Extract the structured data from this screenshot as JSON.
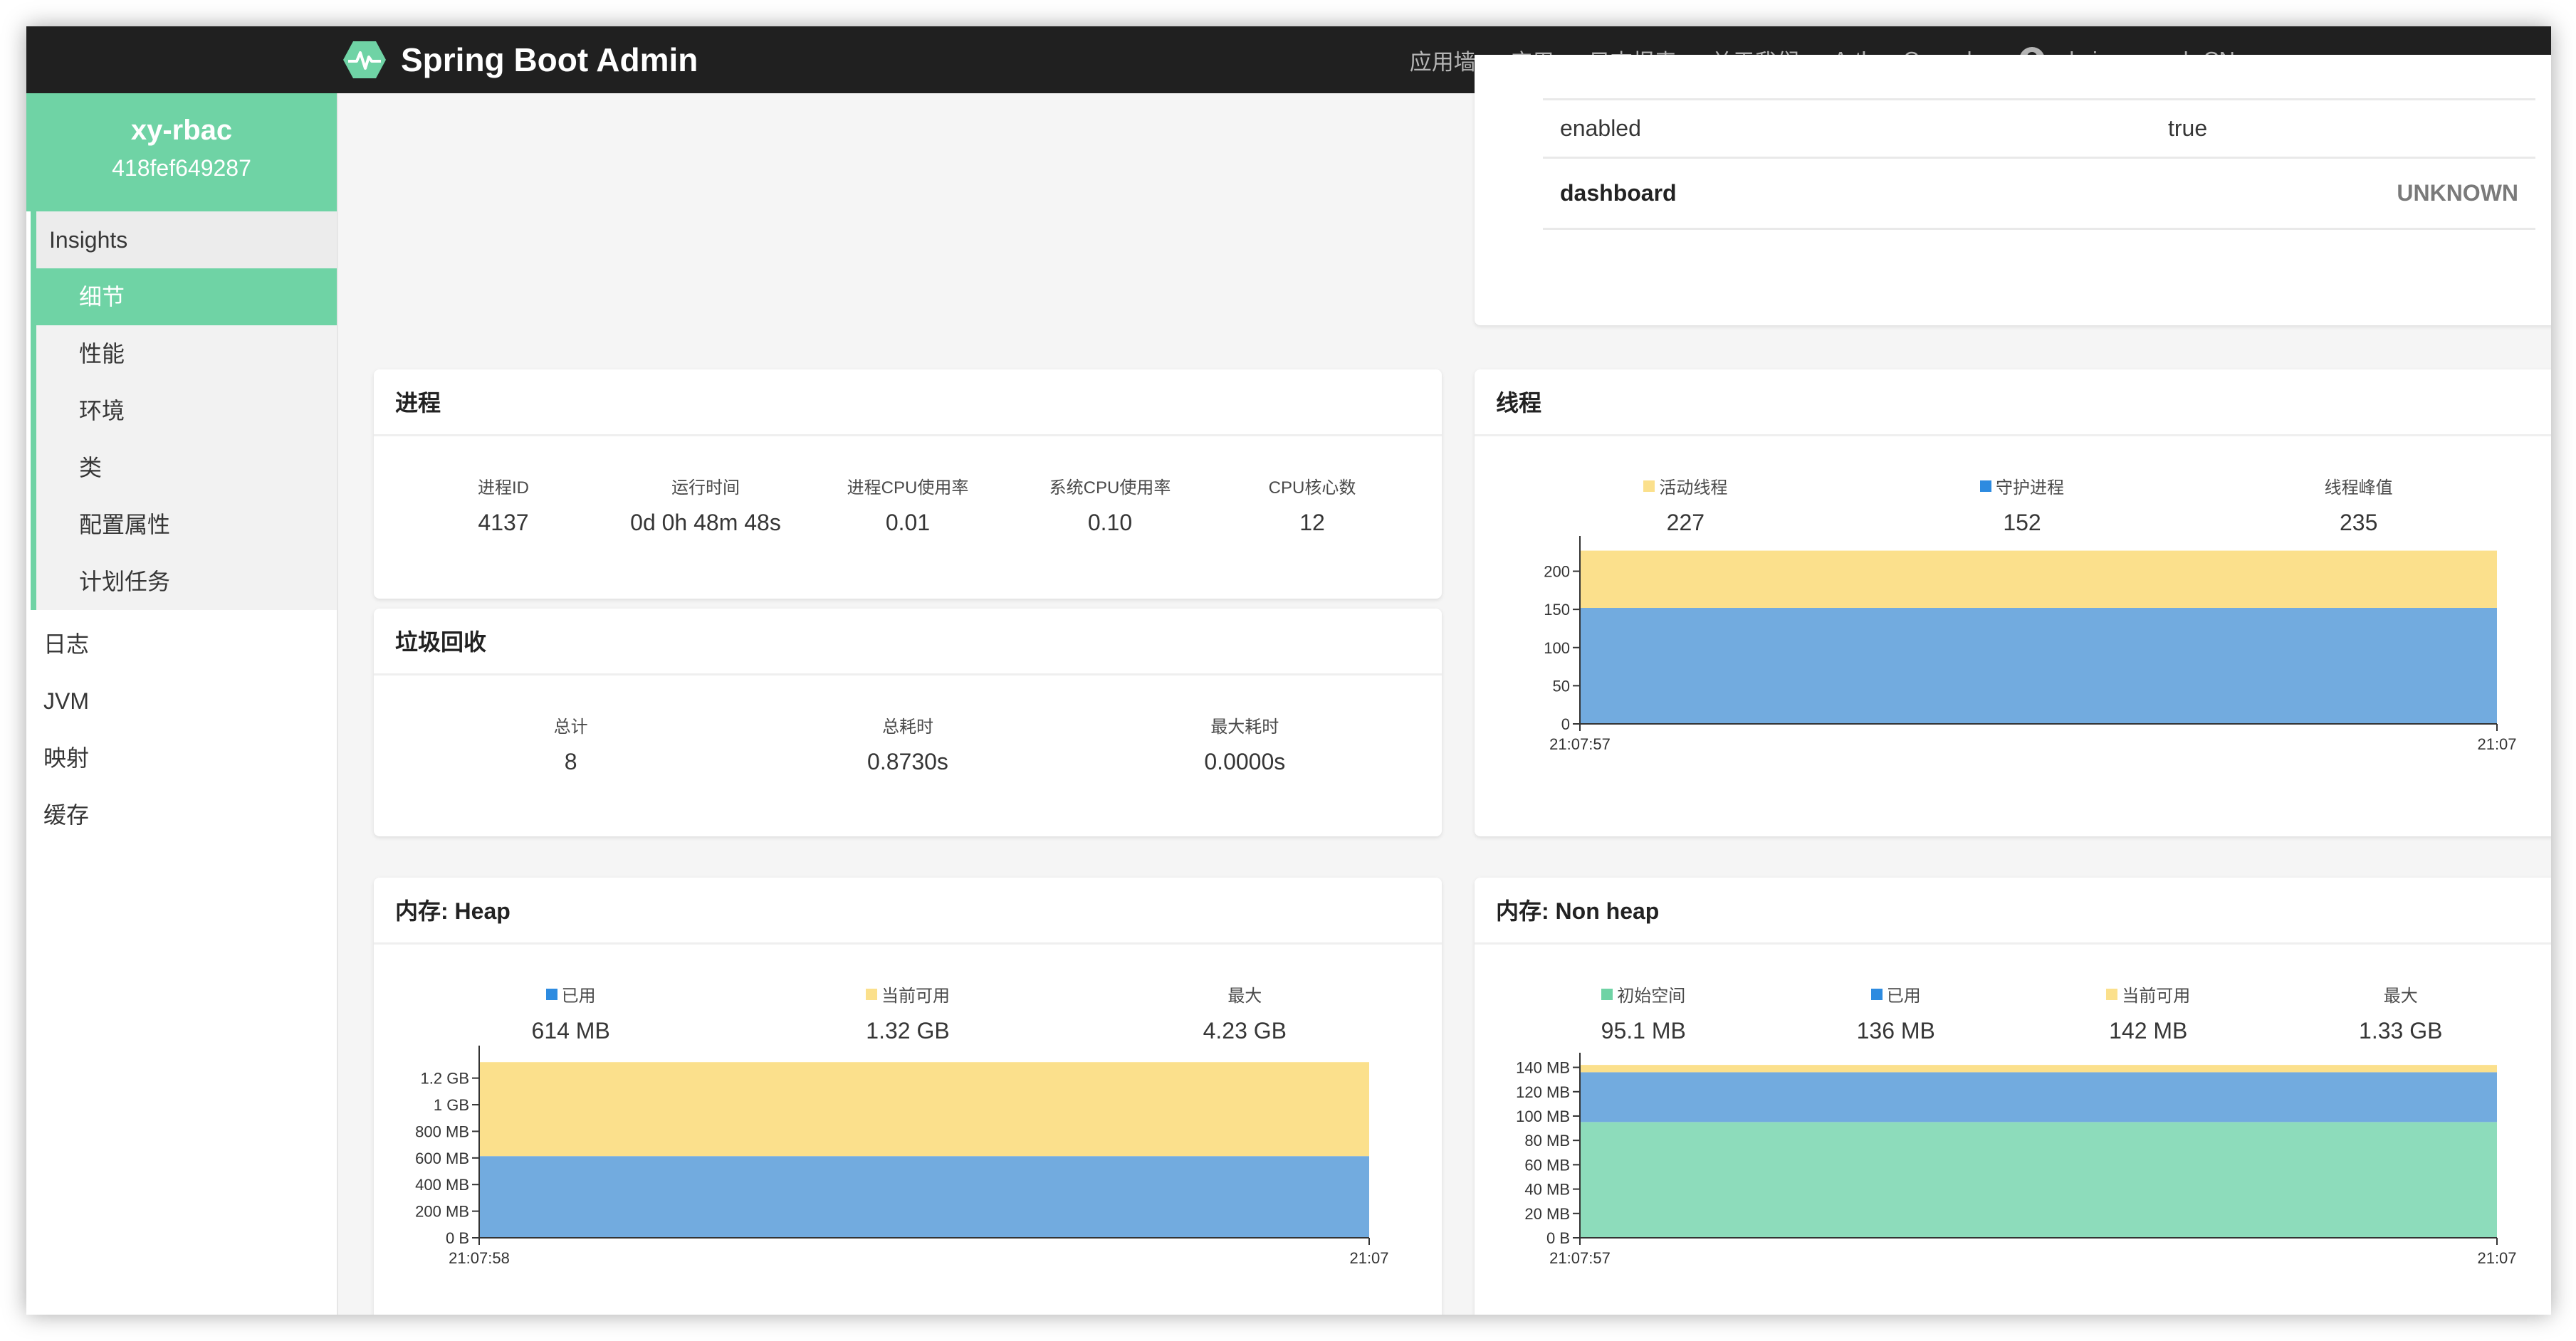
{
  "navbar": {
    "brand": "Spring Boot Admin",
    "items": [
      "应用墙",
      "应用",
      "日志报表",
      "关于我们",
      "Arthas Console"
    ],
    "user": "admin",
    "language": "zh-CN"
  },
  "sidebar": {
    "app_name": "xy-rbac",
    "app_id": "418fef649287",
    "insights_label": "Insights",
    "insights_items": [
      "细节",
      "性能",
      "环境",
      "类",
      "配置属性",
      "计划任务"
    ],
    "active_item": "细节",
    "items": [
      "日志",
      "JVM",
      "映射",
      "缓存"
    ]
  },
  "health": {
    "rows": [
      {
        "key": "enabled",
        "value": "true"
      },
      {
        "key": "dashboard",
        "value": "UNKNOWN"
      }
    ]
  },
  "process": {
    "title": "进程",
    "stats": [
      {
        "label": "进程ID",
        "value": "4137"
      },
      {
        "label": "运行时间",
        "value": "0d 0h 48m 48s"
      },
      {
        "label": "进程CPU使用率",
        "value": "0.01"
      },
      {
        "label": "系统CPU使用率",
        "value": "0.10"
      },
      {
        "label": "CPU核心数",
        "value": "12"
      }
    ]
  },
  "gc": {
    "title": "垃圾回收",
    "stats": [
      {
        "label": "总计",
        "value": "8"
      },
      {
        "label": "总耗时",
        "value": "0.8730s"
      },
      {
        "label": "最大耗时",
        "value": "0.0000s"
      }
    ]
  },
  "threads": {
    "title": "线程",
    "stats": [
      {
        "label": "活动线程",
        "value": "227",
        "color": "#fbe08c"
      },
      {
        "label": "守护进程",
        "value": "152",
        "color": "#2d8be0"
      },
      {
        "label": "线程峰值",
        "value": "235"
      }
    ]
  },
  "heap": {
    "title": "内存: Heap",
    "stats": [
      {
        "label": "已用",
        "value": "614 MB",
        "color": "#2d8be0"
      },
      {
        "label": "当前可用",
        "value": "1.32 GB",
        "color": "#fbe08c"
      },
      {
        "label": "最大",
        "value": "4.23 GB"
      }
    ]
  },
  "nonheap": {
    "title": "内存: Non heap",
    "stats": [
      {
        "label": "初始空间",
        "value": "95.1 MB",
        "color": "#6fd3a5"
      },
      {
        "label": "已用",
        "value": "136 MB",
        "color": "#2d8be0"
      },
      {
        "label": "当前可用",
        "value": "142 MB",
        "color": "#fbe08c"
      },
      {
        "label": "最大",
        "value": "1.33 GB"
      }
    ]
  },
  "colors": {
    "accent": "#6fd3a5",
    "blue_area": "#72abdf",
    "yellow_area": "#fbe08c",
    "green_area": "#8ddcbb",
    "navbar_bg": "#202020"
  },
  "chart_data": [
    {
      "type": "area",
      "name": "threads",
      "x": [
        "21:07:57",
        "21:07"
      ],
      "series": [
        {
          "name": "守护进程",
          "values": [
            152,
            152
          ]
        },
        {
          "name": "活动线程",
          "values": [
            227,
            227
          ]
        }
      ],
      "ylim": [
        0,
        235
      ],
      "yticks": [
        0,
        50,
        100,
        150,
        200
      ],
      "ytick_labels": [
        "0",
        "50",
        "100",
        "150",
        "200"
      ]
    },
    {
      "type": "area",
      "name": "heap",
      "x": [
        "21:07:58",
        "21:07"
      ],
      "series": [
        {
          "name": "已用",
          "values": [
            614,
            614
          ]
        },
        {
          "name": "当前可用",
          "values": [
            1320,
            1320
          ]
        }
      ],
      "ylim": [
        0,
        1380
      ],
      "yticks": [
        0,
        200,
        400,
        600,
        800,
        1000,
        1200
      ],
      "ytick_labels": [
        "0 B",
        "200 MB",
        "400 MB",
        "600 MB",
        "800 MB",
        "1 GB",
        "1.2 GB"
      ]
    },
    {
      "type": "area",
      "name": "nonheap",
      "x": [
        "21:07:57",
        "21:07"
      ],
      "series": [
        {
          "name": "初始空间",
          "values": [
            95.1,
            95.1
          ]
        },
        {
          "name": "已用",
          "values": [
            136,
            136
          ]
        },
        {
          "name": "当前可用",
          "values": [
            142,
            142
          ]
        }
      ],
      "ylim": [
        0,
        145
      ],
      "yticks": [
        0,
        20,
        40,
        60,
        80,
        100,
        120,
        140
      ],
      "ytick_labels": [
        "0 B",
        "20 MB",
        "40 MB",
        "60 MB",
        "80 MB",
        "100 MB",
        "120 MB",
        "140 MB"
      ]
    }
  ]
}
